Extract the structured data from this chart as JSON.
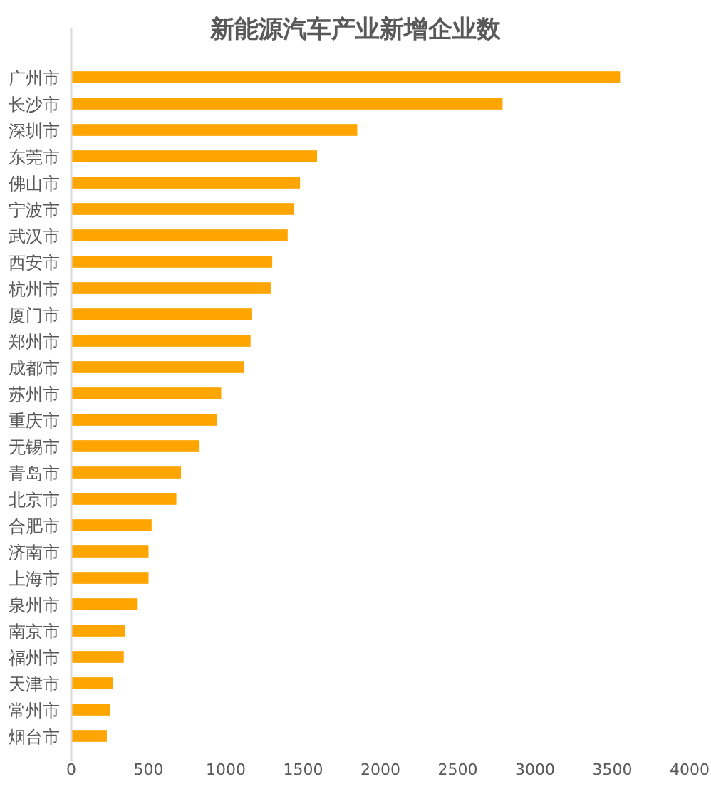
{
  "chart_data": {
    "type": "bar",
    "orientation": "horizontal",
    "title": "新能源汽车产业新增企业数",
    "categories": [
      "广州市",
      "长沙市",
      "深圳市",
      "东莞市",
      "佛山市",
      "宁波市",
      "武汉市",
      "西安市",
      "杭州市",
      "厦门市",
      "郑州市",
      "成都市",
      "苏州市",
      "重庆市",
      "无锡市",
      "青岛市",
      "北京市",
      "合肥市",
      "济南市",
      "上海市",
      "泉州市",
      "南京市",
      "福州市",
      "天津市",
      "常州市",
      "烟台市"
    ],
    "values": [
      3550,
      2790,
      1850,
      1590,
      1480,
      1440,
      1400,
      1300,
      1290,
      1170,
      1160,
      1120,
      970,
      940,
      830,
      710,
      680,
      520,
      500,
      500,
      430,
      350,
      340,
      270,
      250,
      230
    ],
    "color": "#ffa500",
    "xlim": [
      0,
      4000
    ],
    "xticks": [
      0,
      500,
      1000,
      1500,
      2000,
      2500,
      3000,
      3500,
      4000
    ],
    "grid": false
  }
}
